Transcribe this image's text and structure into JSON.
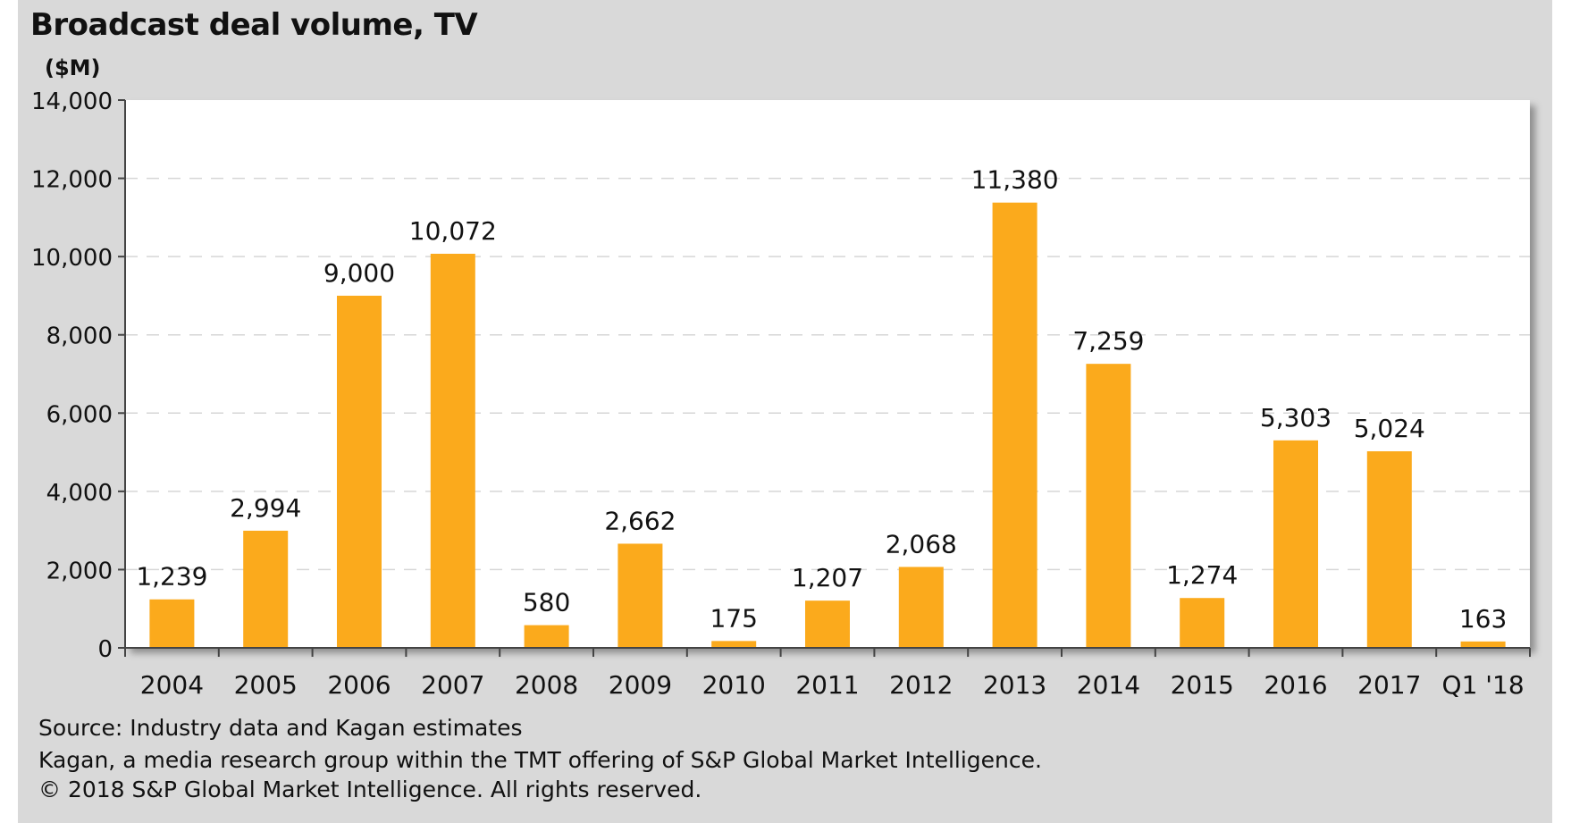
{
  "chart_data": {
    "type": "bar",
    "title": "Broadcast deal volume, TV",
    "ylabel": "($M)",
    "xlabel": "",
    "categories": [
      "2004",
      "2005",
      "2006",
      "2007",
      "2008",
      "2009",
      "2010",
      "2011",
      "2012",
      "2013",
      "2014",
      "2015",
      "2016",
      "2017",
      "Q1 '18"
    ],
    "values": [
      1239,
      2994,
      9000,
      10072,
      580,
      2662,
      175,
      1207,
      2068,
      11380,
      7259,
      1274,
      5303,
      5024,
      163
    ],
    "data_labels": [
      "1,239",
      "2,994",
      "9,000",
      "10,072",
      "580",
      "2,662",
      "175",
      "1,207",
      "2,068",
      "11,380",
      "7,259",
      "1,274",
      "5,303",
      "5,024",
      "163"
    ],
    "ylim": [
      0,
      14000
    ],
    "yticks": [
      0,
      2000,
      4000,
      6000,
      8000,
      10000,
      12000,
      14000
    ],
    "ytick_labels": [
      "0",
      "2,000",
      "4,000",
      "6,000",
      "8,000",
      "10,000",
      "12,000",
      "14,000"
    ],
    "grid": true,
    "bar_color": "#FBAA1C"
  },
  "footer": {
    "source": "Source: Industry data and Kagan estimates",
    "line2": "Kagan, a media research group within the TMT offering of S&P Global Market Intelligence.",
    "line3": "© 2018 S&P Global Market Intelligence. All rights reserved."
  }
}
